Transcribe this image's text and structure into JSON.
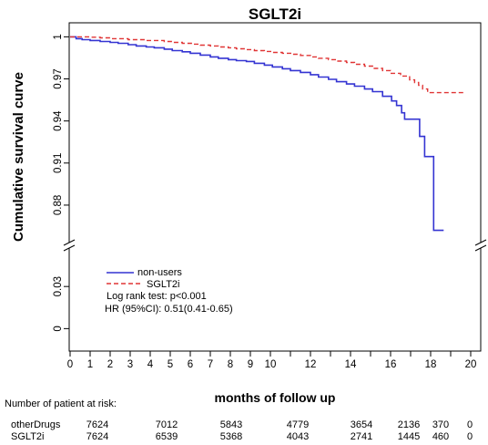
{
  "chart_data": {
    "type": "line",
    "line_shape": "step",
    "title": "SGLT2i",
    "xlabel": "months of follow up",
    "ylabel": "Cumulative survival curve",
    "xlim": [
      0,
      20.5
    ],
    "x_ticks": [
      0,
      1,
      2,
      3,
      4,
      5,
      6,
      7,
      8,
      9,
      10,
      11,
      12,
      13,
      14,
      15,
      16,
      17,
      18,
      19,
      20
    ],
    "x_tick_labels": [
      "0",
      "1",
      "2",
      "3",
      "4",
      "5",
      "6",
      "7",
      "8",
      "9",
      "10",
      "12",
      "14",
      "16",
      "18",
      "20"
    ],
    "y_axis_break": true,
    "y_upper": {
      "ylim": [
        0.852,
        1.01
      ],
      "tick_labels": [
        "1",
        "0.97",
        "0.94",
        "0.91",
        "0.88"
      ]
    },
    "y_lower": {
      "ylim": [
        -0.016,
        0.06
      ],
      "tick_labels": [
        "0.03",
        "0"
      ]
    },
    "grid": false,
    "series": [
      {
        "name": "non-users",
        "color": "#3434d2",
        "line_style": "solid",
        "points": [
          [
            0,
            1
          ],
          [
            0.3,
            0.9987
          ],
          [
            0.6,
            0.998
          ],
          [
            1,
            0.9974
          ],
          [
            1.5,
            0.9967
          ],
          [
            2,
            0.996
          ],
          [
            2.4,
            0.9954
          ],
          [
            2.9,
            0.9944
          ],
          [
            3.3,
            0.9935
          ],
          [
            3.8,
            0.9928
          ],
          [
            4.2,
            0.9922
          ],
          [
            4.7,
            0.9912
          ],
          [
            5.1,
            0.9902
          ],
          [
            5.6,
            0.9893
          ],
          [
            6,
            0.9883
          ],
          [
            6.5,
            0.987
          ],
          [
            7,
            0.9857
          ],
          [
            7.4,
            0.9847
          ],
          [
            7.9,
            0.9837
          ],
          [
            8.3,
            0.983
          ],
          [
            8.8,
            0.9824
          ],
          [
            9.2,
            0.9811
          ],
          [
            9.7,
            0.9798
          ],
          [
            10.1,
            0.9785
          ],
          [
            10.6,
            0.9772
          ],
          [
            11,
            0.9759
          ],
          [
            11.5,
            0.9746
          ],
          [
            12,
            0.973
          ],
          [
            12.4,
            0.9713
          ],
          [
            12.9,
            0.9697
          ],
          [
            13.3,
            0.968
          ],
          [
            13.8,
            0.9664
          ],
          [
            14.2,
            0.9648
          ],
          [
            14.7,
            0.9628
          ],
          [
            15.1,
            0.9609
          ],
          [
            15.6,
            0.9576
          ],
          [
            16.05,
            0.9543
          ],
          [
            16.3,
            0.951
          ],
          [
            16.55,
            0.9458
          ],
          [
            16.7,
            0.9413
          ],
          [
            17.45,
            0.929
          ],
          [
            17.7,
            0.9146
          ],
          [
            18.15,
            0.862
          ],
          [
            18.65,
            0.862
          ]
        ]
      },
      {
        "name": "SGLT2i",
        "color": "#e03535",
        "line_style": "dashed",
        "points": [
          [
            0,
            1
          ],
          [
            1,
            0.9997
          ],
          [
            1.5,
            0.9993
          ],
          [
            2,
            0.9987
          ],
          [
            2.9,
            0.998
          ],
          [
            3.8,
            0.9974
          ],
          [
            4.7,
            0.9967
          ],
          [
            5.1,
            0.996
          ],
          [
            5.6,
            0.9954
          ],
          [
            6.1,
            0.9948
          ],
          [
            6.5,
            0.9941
          ],
          [
            7,
            0.9935
          ],
          [
            7.4,
            0.9928
          ],
          [
            7.9,
            0.9922
          ],
          [
            8.3,
            0.9915
          ],
          [
            8.8,
            0.9909
          ],
          [
            9.2,
            0.9902
          ],
          [
            9.7,
            0.9896
          ],
          [
            10.1,
            0.9889
          ],
          [
            10.6,
            0.9883
          ],
          [
            11.1,
            0.9876
          ],
          [
            11.5,
            0.9867
          ],
          [
            12,
            0.9857
          ],
          [
            12.4,
            0.9847
          ],
          [
            12.9,
            0.9837
          ],
          [
            13.3,
            0.9827
          ],
          [
            13.8,
            0.9817
          ],
          [
            14.2,
            0.9804
          ],
          [
            14.7,
            0.9791
          ],
          [
            15.1,
            0.9775
          ],
          [
            15.6,
            0.9759
          ],
          [
            16,
            0.974
          ],
          [
            16.5,
            0.972
          ],
          [
            16.95,
            0.9693
          ],
          [
            17.2,
            0.9674
          ],
          [
            17.4,
            0.9654
          ],
          [
            17.6,
            0.9628
          ],
          [
            17.85,
            0.9602
          ],
          [
            19.75,
            0.9602
          ]
        ]
      }
    ],
    "legend": {
      "position": "bottom-left",
      "annotations": [
        "Log rank test: p<0.001",
        "HR (95%CI): 0.51(0.41-0.65)"
      ]
    },
    "risk_table": {
      "title": "Number of patient at risk:",
      "rows": [
        {
          "label": "otherDrugs",
          "values": [
            7624,
            7012,
            5843,
            4779,
            3654,
            2136,
            370,
            0
          ]
        },
        {
          "label": "SGLT2i",
          "values": [
            7624,
            6539,
            5368,
            4043,
            2741,
            1445,
            460,
            0
          ]
        }
      ]
    }
  }
}
